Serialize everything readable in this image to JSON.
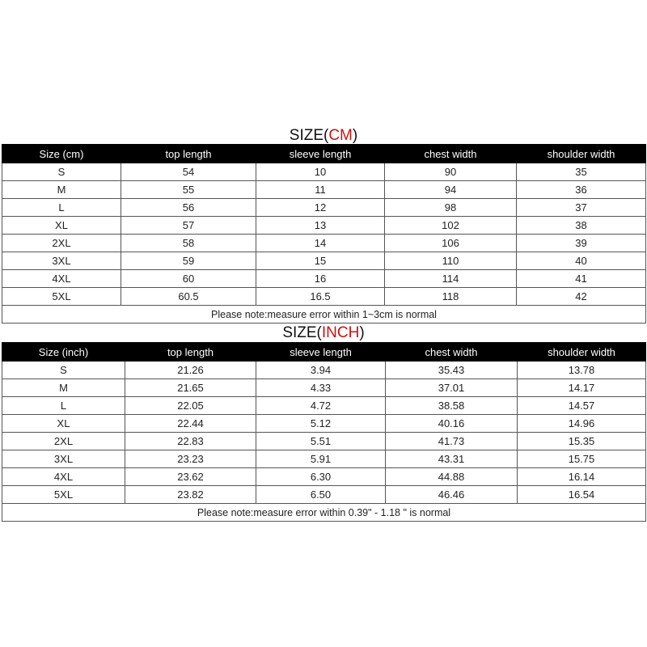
{
  "tables": [
    {
      "title_prefix": "SIZE(",
      "title_unit": "CM",
      "title_suffix": ")",
      "headers": [
        "Size (cm)",
        "top length",
        "sleeve length",
        "chest width",
        "shoulder width"
      ],
      "rows": [
        [
          "S",
          "54",
          "10",
          "90",
          "35"
        ],
        [
          "M",
          "55",
          "11",
          "94",
          "36"
        ],
        [
          "L",
          "56",
          "12",
          "98",
          "37"
        ],
        [
          "XL",
          "57",
          "13",
          "102",
          "38"
        ],
        [
          "2XL",
          "58",
          "14",
          "106",
          "39"
        ],
        [
          "3XL",
          "59",
          "15",
          "110",
          "40"
        ],
        [
          "4XL",
          "60",
          "16",
          "114",
          "41"
        ],
        [
          "5XL",
          "60.5",
          "16.5",
          "118",
          "42"
        ]
      ],
      "note": "Please note:measure error within 1~3cm is normal"
    },
    {
      "title_prefix": "SIZE(",
      "title_unit": "INCH",
      "title_suffix": ")",
      "headers": [
        "Size (inch)",
        "top length",
        "sleeve length",
        "chest width",
        "shoulder width"
      ],
      "rows": [
        [
          "S",
          "21.26",
          "3.94",
          "35.43",
          "13.78"
        ],
        [
          "M",
          "21.65",
          "4.33",
          "37.01",
          "14.17"
        ],
        [
          "L",
          "22.05",
          "4.72",
          "38.58",
          "14.57"
        ],
        [
          "XL",
          "22.44",
          "5.12",
          "40.16",
          "14.96"
        ],
        [
          "2XL",
          "22.83",
          "5.51",
          "41.73",
          "15.35"
        ],
        [
          "3XL",
          "23.23",
          "5.91",
          "43.31",
          "15.75"
        ],
        [
          "4XL",
          "23.62",
          "6.30",
          "44.88",
          "16.14"
        ],
        [
          "5XL",
          "23.82",
          "6.50",
          "46.46",
          "16.54"
        ]
      ],
      "note": "Please note:measure error within 0.39\" - 1.18 \" is normal"
    }
  ],
  "colors": {
    "header_bg": "#000000",
    "header_text": "#ffffff",
    "unit_accent": "#d01010"
  }
}
